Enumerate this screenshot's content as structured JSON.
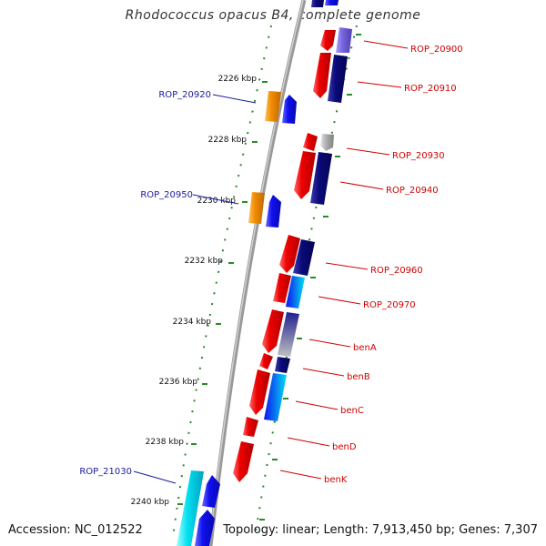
{
  "title": "Rhodococcus opacus B4, complete genome",
  "footer": {
    "accession": "Accession: NC_012522",
    "summary": "Topology: linear; Length: 7,913,450 bp; Genes: 7,307"
  },
  "colors": {
    "backbone": "#888888",
    "tick": "#2a8a2a",
    "red_label": "#d00000",
    "blue_label": "#1a1aa0",
    "gene_red": "#ee0000",
    "gene_navy": "#0a0a7a",
    "gene_blue": "#1010ee",
    "gene_orange": "#f08c00",
    "gene_cyan": "#00e0f0",
    "gene_gray": "#b0b0b0",
    "gene_purple": "#7766dd"
  },
  "kbp_labels": [
    "2226 kbp",
    "2228 kbp",
    "2230 kbp",
    "2232 kbp",
    "2234 kbp",
    "2236 kbp",
    "2238 kbp",
    "2240 kbp"
  ],
  "right_genes": [
    "ROP_20900",
    "ROP_20910",
    "ROP_20930",
    "ROP_20940",
    "ROP_20960",
    "ROP_20970",
    "benA",
    "benB",
    "benC",
    "benD",
    "benK"
  ],
  "left_genes": [
    "ROP_20920",
    "ROP_20950",
    "ROP_21030"
  ]
}
